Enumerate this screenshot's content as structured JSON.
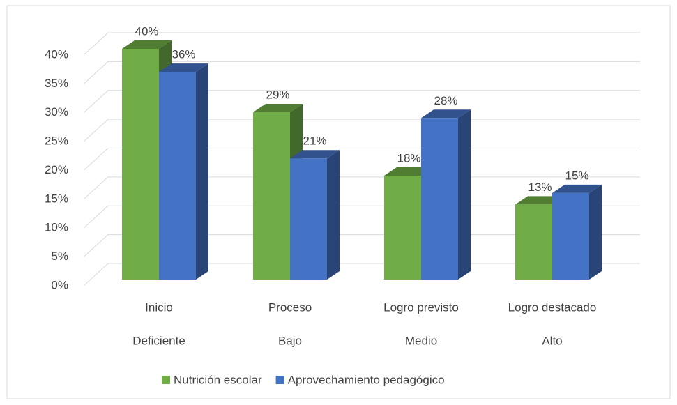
{
  "chart_data": {
    "type": "bar3d",
    "categories": [
      [
        "Inicio",
        "Deficiente"
      ],
      [
        "Proceso",
        "Bajo"
      ],
      [
        "Logro previsto",
        "Medio"
      ],
      [
        "Logro destacado",
        "Alto"
      ]
    ],
    "series": [
      {
        "name": "Nutrición escolar",
        "color": "#70ad47",
        "values": [
          40,
          29,
          18,
          13
        ],
        "value_labels": [
          "40%",
          "29%",
          "18%",
          "13%"
        ]
      },
      {
        "name": "Aprovechamiento pedagógico",
        "color": "#4472c4",
        "values": [
          36,
          21,
          28,
          15
        ],
        "value_labels": [
          "36%",
          "21%",
          "28%",
          "15%"
        ]
      }
    ],
    "ylim": [
      0,
      40
    ],
    "yticks": [
      {
        "value": 0,
        "label": "0%"
      },
      {
        "value": 5,
        "label": "5%"
      },
      {
        "value": 10,
        "label": "10%"
      },
      {
        "value": 15,
        "label": "15%"
      },
      {
        "value": 20,
        "label": "20%"
      },
      {
        "value": 25,
        "label": "25%"
      },
      {
        "value": 30,
        "label": "30%"
      },
      {
        "value": 35,
        "label": "35%"
      },
      {
        "value": 40,
        "label": "40%"
      }
    ],
    "grid": true,
    "legend": "bottom"
  }
}
